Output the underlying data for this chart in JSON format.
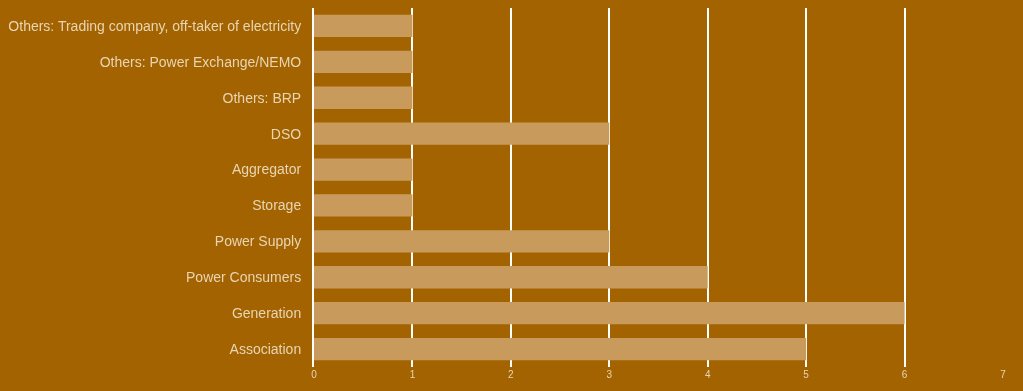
{
  "chart_data": {
    "type": "bar",
    "orientation": "horizontal",
    "categories": [
      "Others: Trading company, off-taker of electricity",
      "Others: Power Exchange/NEMO",
      "Others: BRP",
      "DSO",
      "Aggregator",
      "Storage",
      "Power Supply",
      "Power Consumers",
      "Generation",
      "Association"
    ],
    "values": [
      1,
      1,
      1,
      3,
      1,
      1,
      3,
      4,
      6,
      5
    ],
    "color": "#c89b5c",
    "xlim": [
      0,
      7
    ],
    "xticks": [
      0,
      1,
      2,
      3,
      4,
      5,
      6,
      7
    ],
    "grid": "x"
  }
}
